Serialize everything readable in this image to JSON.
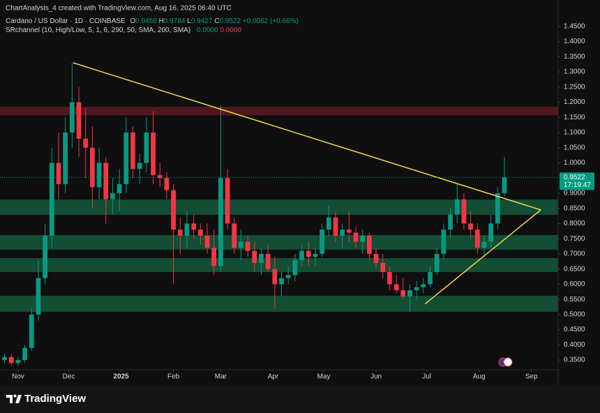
{
  "header": {
    "credit": "ChartAnalysis_4 created with TradingView.com, Aug 16, 2025 06:40 UTC",
    "symbol": "Cardano / US Dollar · 1D · COINBASE",
    "ohlc": [
      {
        "label": "O",
        "value": "0.9458"
      },
      {
        "label": "H",
        "value": "0.9784"
      },
      {
        "label": "L",
        "value": "0.9427"
      },
      {
        "label": "C",
        "value": "0.9522"
      }
    ],
    "change": "+0.0062 (+0.66%)",
    "indicator": "SRchannel (10, High/Low, 5, 1, 6, 290, 50, SMA, 200, SMA)",
    "indicator_values": [
      "0.0000",
      "0.0000"
    ]
  },
  "footer": {
    "brand": "TradingView"
  },
  "chart_data": {
    "type": "candlestick",
    "x": [
      -8,
      -4,
      0,
      4,
      8,
      12,
      16,
      20,
      24,
      28,
      32,
      36,
      40,
      44,
      48,
      52,
      56,
      60,
      64,
      68,
      72,
      76,
      80,
      84,
      88,
      92,
      96,
      100,
      104,
      108,
      112,
      116,
      120,
      124,
      128,
      132,
      136,
      140,
      144,
      148,
      152,
      156,
      160,
      164,
      168,
      172,
      176,
      180,
      184,
      188,
      192,
      196,
      200,
      204,
      208,
      212,
      216,
      220,
      224,
      228,
      232,
      236,
      240,
      244,
      248,
      252,
      256,
      260,
      264,
      268,
      272,
      276,
      280,
      284,
      288
    ],
    "open": [
      0.35,
      0.36,
      0.34,
      0.35,
      0.39,
      0.5,
      0.62,
      0.76,
      1.0,
      0.93,
      1.1,
      1.2,
      1.08,
      1.05,
      0.92,
      1.0,
      0.88,
      0.9,
      0.93,
      1.1,
      0.98,
      1.0,
      1.1,
      0.96,
      0.95,
      0.91,
      0.78,
      0.76,
      0.8,
      0.78,
      0.76,
      0.72,
      0.66,
      0.95,
      0.8,
      0.72,
      0.74,
      0.71,
      0.67,
      0.7,
      0.65,
      0.6,
      0.62,
      0.63,
      0.68,
      0.71,
      0.69,
      0.7,
      0.78,
      0.82,
      0.76,
      0.78,
      0.77,
      0.74,
      0.76,
      0.7,
      0.67,
      0.64,
      0.6,
      0.58,
      0.56,
      0.58,
      0.59,
      0.6,
      0.64,
      0.7,
      0.78,
      0.83,
      0.88,
      0.8,
      0.78,
      0.72,
      0.74,
      0.8,
      0.9
    ],
    "high": [
      0.37,
      0.37,
      0.36,
      0.4,
      0.52,
      0.68,
      0.8,
      1.05,
      1.1,
      1.15,
      1.33,
      1.25,
      1.18,
      1.12,
      1.05,
      1.02,
      0.95,
      0.98,
      1.15,
      1.12,
      1.03,
      1.15,
      1.17,
      1.0,
      0.97,
      0.93,
      0.82,
      0.84,
      0.83,
      0.8,
      0.8,
      0.78,
      1.19,
      0.98,
      0.82,
      0.78,
      0.76,
      0.74,
      0.72,
      0.73,
      0.69,
      0.64,
      0.66,
      0.7,
      0.73,
      0.74,
      0.72,
      0.8,
      0.86,
      0.84,
      0.8,
      0.84,
      0.79,
      0.78,
      0.77,
      0.72,
      0.7,
      0.66,
      0.63,
      0.62,
      0.6,
      0.61,
      0.62,
      0.66,
      0.72,
      0.8,
      0.85,
      0.93,
      0.9,
      0.84,
      0.8,
      0.76,
      0.83,
      0.92,
      1.02
    ],
    "low": [
      0.34,
      0.33,
      0.33,
      0.34,
      0.38,
      0.48,
      0.6,
      0.72,
      0.88,
      0.9,
      1.05,
      1.02,
      0.95,
      0.85,
      0.88,
      0.8,
      0.83,
      0.84,
      0.9,
      0.95,
      0.93,
      0.97,
      0.93,
      0.92,
      0.88,
      0.6,
      0.7,
      0.72,
      0.75,
      0.73,
      0.7,
      0.63,
      0.64,
      0.78,
      0.7,
      0.68,
      0.69,
      0.64,
      0.63,
      0.64,
      0.52,
      0.56,
      0.6,
      0.61,
      0.66,
      0.66,
      0.66,
      0.69,
      0.76,
      0.74,
      0.72,
      0.74,
      0.72,
      0.7,
      0.68,
      0.65,
      0.62,
      0.58,
      0.57,
      0.55,
      0.51,
      0.55,
      0.57,
      0.59,
      0.63,
      0.68,
      0.75,
      0.8,
      0.78,
      0.75,
      0.7,
      0.69,
      0.72,
      0.78,
      0.89
    ],
    "close": [
      0.36,
      0.34,
      0.35,
      0.39,
      0.5,
      0.62,
      0.76,
      1.0,
      0.93,
      1.1,
      1.2,
      1.08,
      1.05,
      0.92,
      1.0,
      0.88,
      0.9,
      0.93,
      1.1,
      0.98,
      1.0,
      1.1,
      0.96,
      0.95,
      0.91,
      0.78,
      0.76,
      0.8,
      0.78,
      0.76,
      0.72,
      0.66,
      0.95,
      0.8,
      0.72,
      0.74,
      0.71,
      0.67,
      0.7,
      0.65,
      0.6,
      0.62,
      0.63,
      0.68,
      0.71,
      0.69,
      0.7,
      0.78,
      0.82,
      0.76,
      0.78,
      0.77,
      0.74,
      0.76,
      0.7,
      0.67,
      0.64,
      0.6,
      0.58,
      0.56,
      0.58,
      0.59,
      0.6,
      0.64,
      0.7,
      0.78,
      0.83,
      0.88,
      0.8,
      0.78,
      0.72,
      0.74,
      0.8,
      0.9,
      0.9522
    ],
    "up_color": "#089981",
    "down_color": "#f23645",
    "xlim": [
      -10.7,
      319.8
    ],
    "ylim": [
      0.318,
      1.537
    ],
    "xticks": [
      {
        "value": 0,
        "label": "Nov"
      },
      {
        "value": 30,
        "label": "Dec"
      },
      {
        "value": 61,
        "label": "2025"
      },
      {
        "value": 92,
        "label": "Feb"
      },
      {
        "value": 120,
        "label": "Mar"
      },
      {
        "value": 151,
        "label": "Apr"
      },
      {
        "value": 181,
        "label": "May"
      },
      {
        "value": 212,
        "label": "Jun"
      },
      {
        "value": 242,
        "label": "Jul"
      },
      {
        "value": 273,
        "label": "Aug"
      },
      {
        "value": 304,
        "label": "Sep"
      }
    ],
    "yticks": [
      {
        "value": 1.45,
        "label": "1.4500"
      },
      {
        "value": 1.4,
        "label": "1.4000"
      },
      {
        "value": 1.35,
        "label": "1.3500"
      },
      {
        "value": 1.3,
        "label": "1.3000"
      },
      {
        "value": 1.25,
        "label": "1.2500"
      },
      {
        "value": 1.2,
        "label": "1.2000"
      },
      {
        "value": 1.15,
        "label": "1.1500"
      },
      {
        "value": 1.1,
        "label": "1.1000"
      },
      {
        "value": 1.05,
        "label": "1.0500"
      },
      {
        "value": 1.0,
        "label": "1.0000"
      },
      {
        "value": 0.9,
        "label": "0.9000"
      },
      {
        "value": 0.85,
        "label": "0.8500"
      },
      {
        "value": 0.8,
        "label": "0.8000"
      },
      {
        "value": 0.75,
        "label": "0.7500"
      },
      {
        "value": 0.7,
        "label": "0.7000"
      },
      {
        "value": 0.65,
        "label": "0.6500"
      },
      {
        "value": 0.6,
        "label": "0.6000"
      },
      {
        "value": 0.55,
        "label": "0.5500"
      },
      {
        "value": 0.5,
        "label": "0.5000"
      },
      {
        "value": 0.45,
        "label": "0.4500"
      },
      {
        "value": 0.4,
        "label": "0.4000"
      },
      {
        "value": 0.35,
        "label": "0.3500"
      }
    ],
    "zones": [
      {
        "from": 1.157,
        "to": 1.185,
        "color": "#5a1a22"
      },
      {
        "from": 0.829,
        "to": 0.879,
        "color": "#14583a"
      },
      {
        "from": 0.714,
        "to": 0.762,
        "color": "#14583a"
      },
      {
        "from": 0.64,
        "to": 0.686,
        "color": "#14583a"
      },
      {
        "from": 0.509,
        "to": 0.562,
        "color": "#14583a"
      }
    ],
    "trendlines": [
      {
        "x": [
          32.6,
          309.5
        ],
        "y": [
          1.33,
          0.845
        ]
      },
      {
        "x": [
          241,
          309.5
        ],
        "y": [
          0.535,
          0.845
        ]
      }
    ],
    "trendline_color": "#f2d94e",
    "last_price": {
      "value": 0.9522,
      "countdown": "17:19:47"
    }
  }
}
